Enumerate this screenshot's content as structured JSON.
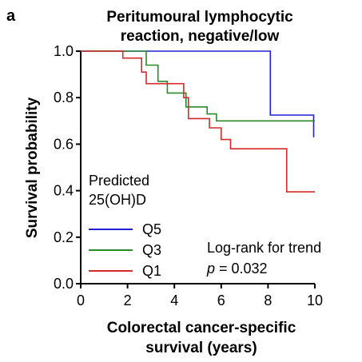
{
  "panel_label": "a",
  "chart_data": {
    "type": "line",
    "title": [
      "Peritumoural lymphocytic",
      "reaction, negative/low"
    ],
    "xlabel": [
      "Colorectal cancer-specific",
      "survival (years)"
    ],
    "ylabel": "Survival probability",
    "xlim": [
      0,
      10
    ],
    "ylim": [
      0,
      1
    ],
    "x_ticks": [
      0,
      2,
      4,
      6,
      8,
      10
    ],
    "y_ticks": [
      0.0,
      0.2,
      0.4,
      0.6,
      0.8,
      1.0
    ],
    "x_tick_labels": [
      "0",
      "2",
      "4",
      "6",
      "8",
      "10"
    ],
    "y_tick_labels": [
      "0.0",
      "0.2",
      "0.4",
      "0.6",
      "0.8",
      "1.0"
    ],
    "grid": false,
    "step": true,
    "legend": {
      "title": [
        "Predicted",
        "25(OH)D"
      ],
      "position": "left"
    },
    "annotation": {
      "line1": "Log-rank for trend",
      "p_label": "p",
      "p_value": "= 0.032"
    },
    "series": [
      {
        "name": "Q5",
        "color": "#1f1fd6",
        "points": [
          [
            0,
            1.0
          ],
          [
            8.1,
            1.0
          ],
          [
            8.1,
            0.725
          ],
          [
            9.95,
            0.725
          ],
          [
            9.95,
            0.63
          ]
        ]
      },
      {
        "name": "Q3",
        "color": "#2a8a2a",
        "points": [
          [
            0,
            1.0
          ],
          [
            2.8,
            1.0
          ],
          [
            2.8,
            0.94
          ],
          [
            3.3,
            0.94
          ],
          [
            3.3,
            0.87
          ],
          [
            3.7,
            0.87
          ],
          [
            3.7,
            0.82
          ],
          [
            4.5,
            0.82
          ],
          [
            4.5,
            0.76
          ],
          [
            5.4,
            0.76
          ],
          [
            5.4,
            0.73
          ],
          [
            5.8,
            0.73
          ],
          [
            5.8,
            0.7
          ],
          [
            10,
            0.7
          ]
        ]
      },
      {
        "name": "Q1",
        "color": "#d42a2a",
        "points": [
          [
            0,
            1.0
          ],
          [
            1.8,
            1.0
          ],
          [
            1.8,
            0.97
          ],
          [
            2.6,
            0.97
          ],
          [
            2.6,
            0.91
          ],
          [
            2.8,
            0.91
          ],
          [
            2.8,
            0.86
          ],
          [
            4.4,
            0.86
          ],
          [
            4.4,
            0.8
          ],
          [
            4.6,
            0.8
          ],
          [
            4.6,
            0.71
          ],
          [
            5.5,
            0.71
          ],
          [
            5.5,
            0.67
          ],
          [
            6.0,
            0.67
          ],
          [
            6.0,
            0.62
          ],
          [
            6.4,
            0.62
          ],
          [
            6.4,
            0.58
          ],
          [
            8.8,
            0.58
          ],
          [
            8.8,
            0.395
          ],
          [
            10,
            0.395
          ]
        ]
      }
    ]
  }
}
